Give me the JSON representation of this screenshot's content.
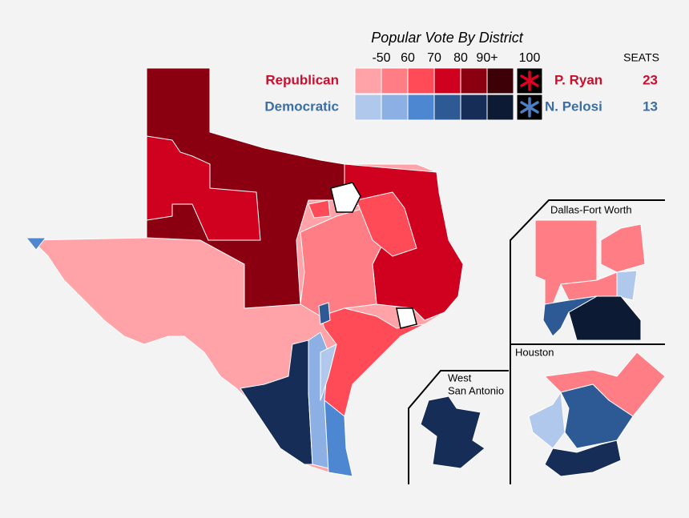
{
  "title": "Popular Vote By District",
  "scale_labels": [
    "-50",
    "60",
    "70",
    "80",
    "90+",
    "100"
  ],
  "seats_header": "SEATS",
  "parties": [
    {
      "name": "Republican",
      "leader": "P. Ryan",
      "seats": 23
    },
    {
      "name": "Democratic",
      "leader": "N. Pelosi",
      "seats": 13
    }
  ],
  "insets": {
    "dfw": "Dallas-Fort Worth",
    "sa": [
      "West",
      "San Antonio"
    ],
    "houston": "Houston"
  }
}
